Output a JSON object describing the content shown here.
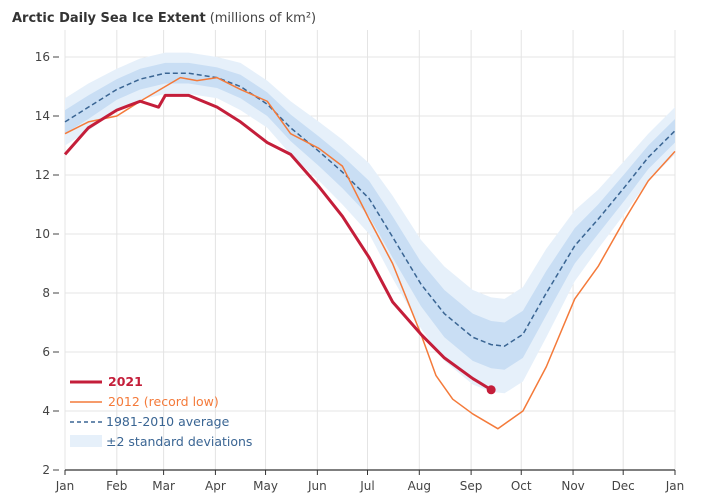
{
  "chart_data": {
    "type": "line",
    "title": "Arctic Daily Sea Ice Extent",
    "subtitle": "(millions of km²)",
    "xticks": [
      "Jan",
      "Feb",
      "Mar",
      "Apr",
      "May",
      "Jun",
      "Jul",
      "Aug",
      "Sep",
      "Oct",
      "Nov",
      "Dec",
      "Jan"
    ],
    "ylim": [
      2,
      17
    ],
    "yticks": [
      2,
      4,
      6,
      8,
      10,
      12,
      14,
      16
    ],
    "grid": true,
    "legend_placement": "bottom-left",
    "x_units": "day of year",
    "series": [
      {
        "name": "2021",
        "color": "#c41e3a",
        "x": [
          0,
          14,
          31,
          45,
          56,
          60,
          74,
          91,
          105,
          121,
          135,
          152,
          166,
          182,
          196,
          213,
          227,
          244,
          255
        ],
        "values": [
          12.7,
          13.6,
          14.2,
          14.5,
          14.3,
          14.7,
          14.7,
          14.3,
          13.8,
          13.1,
          12.7,
          11.6,
          10.6,
          9.2,
          7.7,
          6.6,
          5.8,
          5.1,
          4.72
        ]
      },
      {
        "name": "2012 (record low)",
        "color": "#f47a3a",
        "x": [
          0,
          14,
          31,
          45,
          60,
          69,
          79,
          91,
          105,
          121,
          135,
          152,
          166,
          182,
          196,
          213,
          222,
          232,
          244,
          259,
          274,
          288,
          305,
          319,
          335,
          349,
          365
        ],
        "values": [
          13.4,
          13.8,
          14.0,
          14.5,
          15.0,
          15.3,
          15.2,
          15.3,
          14.9,
          14.5,
          13.4,
          12.9,
          12.3,
          10.5,
          9.0,
          6.6,
          5.2,
          4.4,
          3.9,
          3.4,
          4.0,
          5.5,
          7.8,
          8.9,
          10.5,
          11.8,
          12.8
        ]
      },
      {
        "name": "1981-2010 average",
        "color": "#3a6593",
        "x": [
          0,
          14,
          31,
          45,
          60,
          74,
          91,
          105,
          121,
          135,
          152,
          166,
          182,
          196,
          213,
          227,
          244,
          255,
          263,
          274,
          288,
          305,
          319,
          335,
          349,
          365
        ],
        "values": [
          13.8,
          14.3,
          14.9,
          15.25,
          15.45,
          15.45,
          15.3,
          15.0,
          14.4,
          13.6,
          12.8,
          12.1,
          11.2,
          9.9,
          8.3,
          7.3,
          6.5,
          6.25,
          6.2,
          6.6,
          8.0,
          9.6,
          10.5,
          11.6,
          12.6,
          13.5
        ],
        "std_dev": [
          0.4,
          0.4,
          0.35,
          0.35,
          0.35,
          0.35,
          0.35,
          0.4,
          0.4,
          0.45,
          0.5,
          0.55,
          0.6,
          0.7,
          0.75,
          0.8,
          0.8,
          0.8,
          0.8,
          0.8,
          0.75,
          0.6,
          0.5,
          0.45,
          0.4,
          0.4
        ]
      }
    ],
    "band_label": "±2 standard deviations",
    "band_colors": {
      "inner": "#c9def4",
      "outer": "#e6f0fa"
    }
  }
}
